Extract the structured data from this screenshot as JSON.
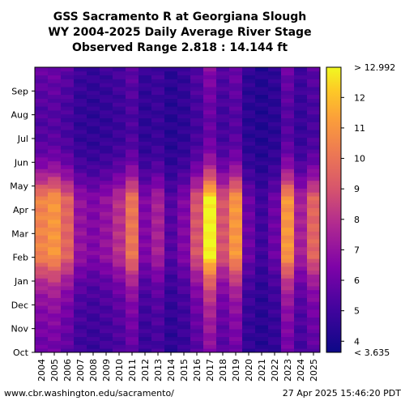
{
  "chart_data": {
    "type": "heatmap",
    "title_lines": [
      "GSS Sacramento R at Georgiana Slough",
      "WY 2004-2025 Daily Average River Stage",
      "Observed Range 2.818 : 14.144 ft"
    ],
    "xlabel": "",
    "ylabel": "",
    "x_categories": [
      "2004",
      "2005",
      "2006",
      "2007",
      "2008",
      "2009",
      "2010",
      "2011",
      "2012",
      "2013",
      "2014",
      "2015",
      "2016",
      "2017",
      "2018",
      "2019",
      "2020",
      "2021",
      "2022",
      "2023",
      "2024",
      "2025"
    ],
    "y_month_ticks": [
      "Oct",
      "Nov",
      "Dec",
      "Jan",
      "Feb",
      "Mar",
      "Apr",
      "May",
      "Jun",
      "Jul",
      "Aug",
      "Sep"
    ],
    "colorbar": {
      "ticks": [
        "4",
        "5",
        "6",
        "7",
        "8",
        "9",
        "10",
        "11",
        "12"
      ],
      "top_label": "> 12.992",
      "bottom_label": "< 3.635",
      "vmin": 3.635,
      "vmax": 12.992
    },
    "water_year_peak_stage_ft": [
      10.5,
      11.0,
      9.5,
      7.0,
      6.5,
      7.0,
      8.0,
      10.0,
      6.5,
      7.5,
      5.5,
      6.5,
      9.0,
      13.0,
      9.0,
      11.0,
      6.0,
      5.0,
      6.0,
      11.0,
      7.5,
      9.5
    ],
    "grid": false,
    "legend": "colorbar-right"
  },
  "footer": {
    "left": "www.cbr.washington.edu/sacramento/",
    "right": "27 Apr 2025 15:46:20 PDT"
  }
}
